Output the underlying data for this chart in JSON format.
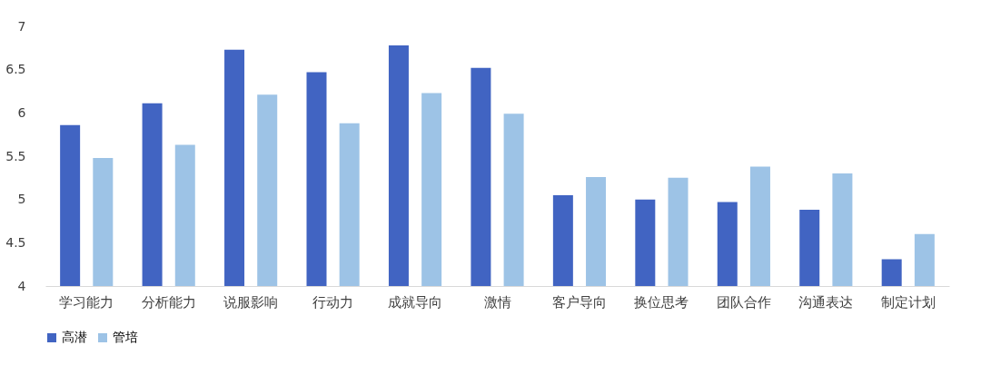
{
  "chart_data": {
    "type": "bar",
    "categories": [
      "学习能力",
      "分析能力",
      "说服影响",
      "行动力",
      "成就导向",
      "激情",
      "客户导向",
      "换位思考",
      "团队合作",
      "沟通表达",
      "制定计划"
    ],
    "series": [
      {
        "name": "高潜",
        "color": "#4164c2",
        "values": [
          5.86,
          6.11,
          6.73,
          6.47,
          6.78,
          6.52,
          5.05,
          5.0,
          4.97,
          4.88,
          4.31
        ]
      },
      {
        "name": "管培",
        "color": "#9dc3e6",
        "values": [
          5.48,
          5.63,
          6.21,
          5.88,
          6.23,
          5.99,
          5.26,
          5.25,
          5.38,
          5.3,
          4.6
        ]
      }
    ],
    "ylim": [
      4,
      7
    ],
    "yticks": [
      4,
      4.5,
      5,
      5.5,
      6,
      6.5,
      7
    ],
    "grid": false,
    "legend": "bottom"
  }
}
